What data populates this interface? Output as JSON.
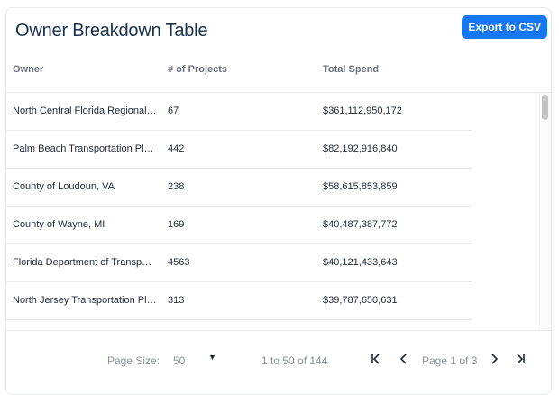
{
  "title": "Owner Breakdown Table",
  "export_label": "Export to CSV",
  "columns": [
    "Owner",
    "# of Projects",
    "Total Spend"
  ],
  "rows": [
    {
      "owner": "North Central Florida Regional Pl...",
      "projects": "67",
      "spend": "$361,112,950,172"
    },
    {
      "owner": "Palm Beach Transportation Planni...",
      "projects": "442",
      "spend": "$82,192,916,840"
    },
    {
      "owner": "County of Loudoun, VA",
      "projects": "238",
      "spend": "$58,615,853,859"
    },
    {
      "owner": "County of Wayne, MI",
      "projects": "169",
      "spend": "$40,487,387,772"
    },
    {
      "owner": "Florida Department of Transporta...",
      "projects": "4563",
      "spend": "$40,121,433,643"
    },
    {
      "owner": "North Jersey Transportation Plan...",
      "projects": "313",
      "spend": "$39,787,650,631"
    }
  ],
  "pagination": {
    "page_size_label": "Page Size:",
    "page_size_value": "50",
    "range_text": "1 to 50 of 144",
    "page_text": "Page 1 of 3"
  },
  "icons": {
    "first": "first-page-icon",
    "prev": "prev-page-icon",
    "next": "next-page-icon",
    "last": "last-page-icon",
    "caret": "caret-down-icon"
  }
}
